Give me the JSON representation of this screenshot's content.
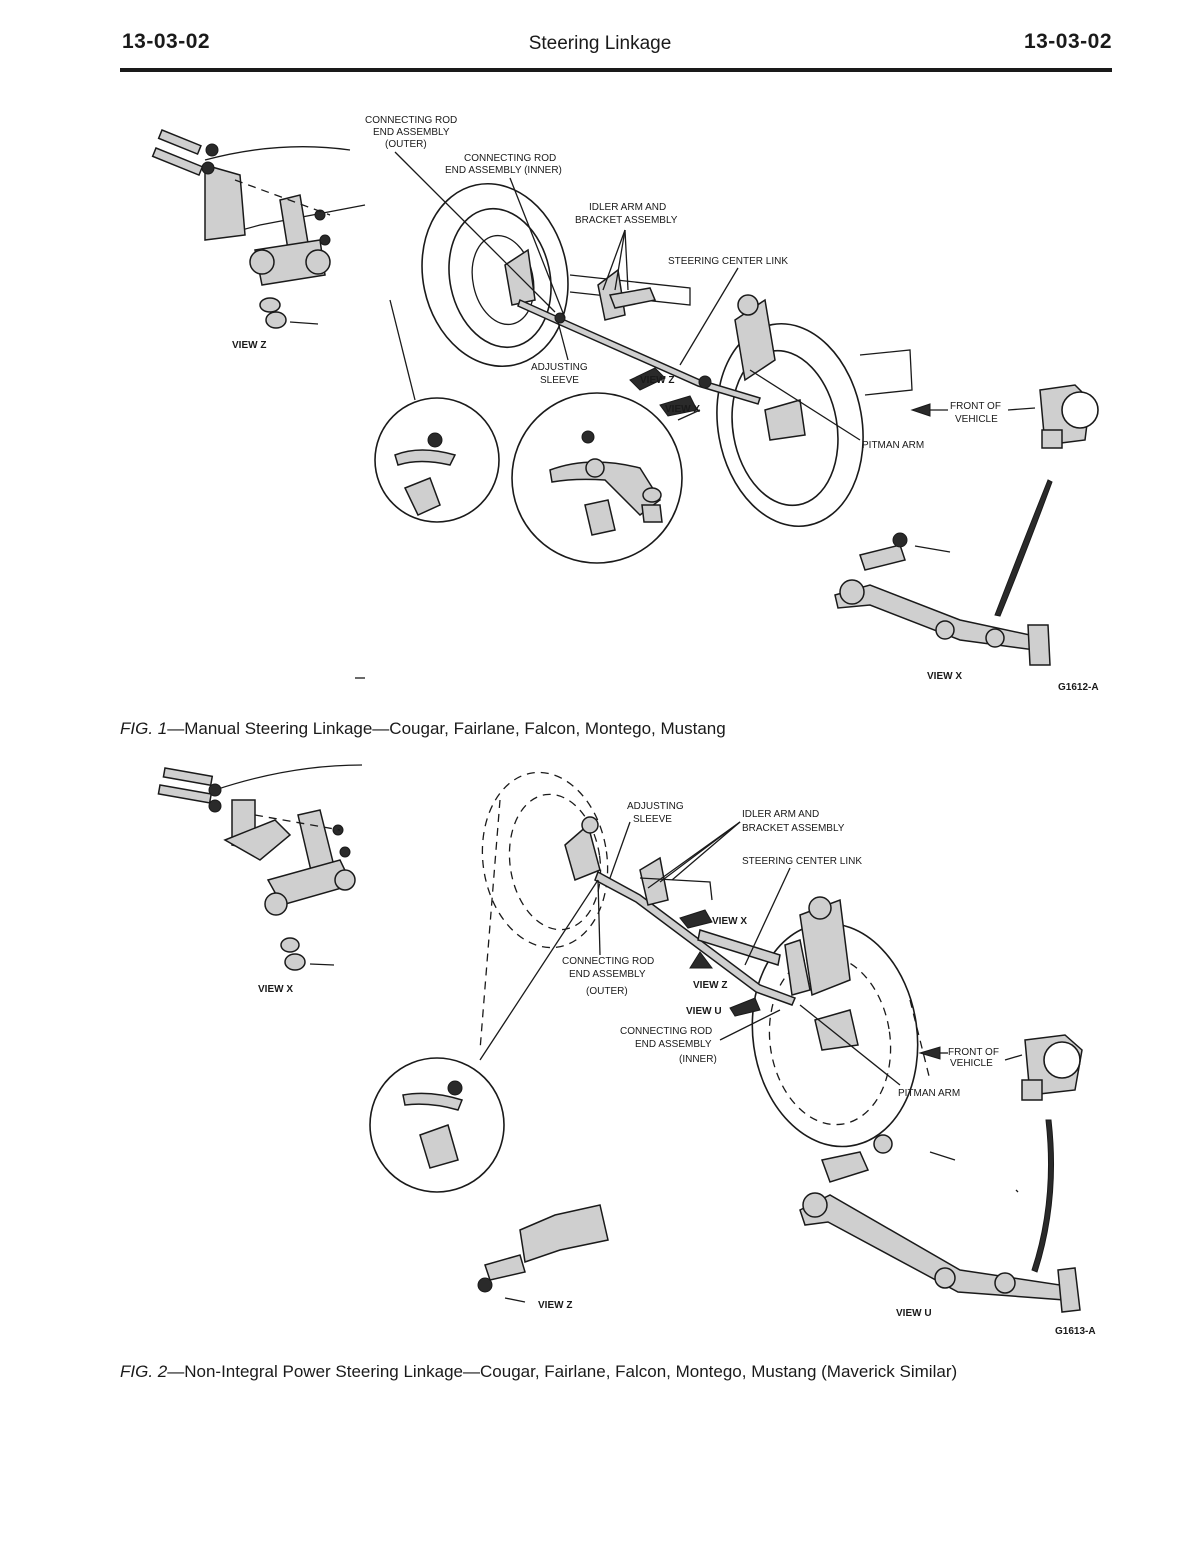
{
  "header": {
    "left_code": "13-03-02",
    "title": "Steering Linkage",
    "right_code": "13-03-02"
  },
  "figure1": {
    "labels": {
      "conn_outer_1": "CONNECTING ROD",
      "conn_outer_2": "END ASSEMBLY",
      "conn_outer_3": "(OUTER)",
      "conn_inner_1": "CONNECTING ROD",
      "conn_inner_2": "END ASSEMBLY (INNER)",
      "idler_1": "IDLER ARM AND",
      "idler_2": "BRACKET ASSEMBLY",
      "center_link": "STEERING CENTER LINK",
      "view_z": "VIEW Z",
      "adjusting_1": "ADJUSTING",
      "adjusting_2": "SLEEVE",
      "view_z_arrow": "VIEW Z",
      "view_x_arrow": "VIEW X",
      "front_1": "FRONT OF",
      "front_2": "VEHICLE",
      "pitman": "PITMAN ARM",
      "view_x": "VIEW X",
      "code": "G1612-A"
    },
    "caption_prefix": "FIG. 1",
    "caption_text": "—Manual Steering Linkage—Cougar, Fairlane, Falcon, Montego, Mustang"
  },
  "figure2": {
    "labels": {
      "adjusting_1": "ADJUSTING",
      "adjusting_2": "SLEEVE",
      "idler_1": "IDLER ARM AND",
      "idler_2": "BRACKET ASSEMBLY",
      "center_link": "STEERING CENTER LINK",
      "view_x_arrow": "VIEW X",
      "view_x": "VIEW X",
      "conn_outer_1": "CONNECTING ROD",
      "conn_outer_2": "END ASSEMBLY",
      "conn_outer_3": "(OUTER)",
      "view_z_arrow": "VIEW Z",
      "view_u_arrow": "VIEW U",
      "conn_inner_1": "CONNECTING ROD",
      "conn_inner_2": "END ASSEMBLY",
      "conn_inner_3": "(INNER)",
      "front_1": "FRONT OF",
      "front_2": "VEHICLE",
      "pitman": "PITMAN ARM",
      "view_z": "VIEW Z",
      "view_u": "VIEW U",
      "code": "G1613-A"
    },
    "caption_prefix": "FIG. 2",
    "caption_text": "—Non-Integral Power Steering Linkage—Cougar, Fairlane, Falcon, Montego, Mustang (Maverick Similar)"
  }
}
